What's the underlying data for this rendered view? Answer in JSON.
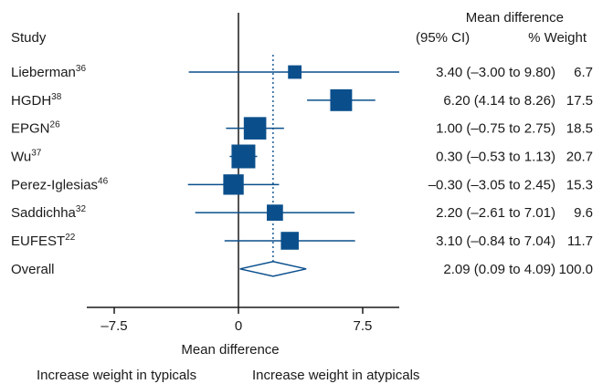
{
  "header": {
    "study": "Study",
    "effect_line1": "Mean difference",
    "effect_line2": "(95% CI)",
    "weight": "% Weight"
  },
  "chart_data": {
    "type": "forest",
    "xlabel": "Mean difference",
    "xlim": [
      -9,
      9
    ],
    "xticks": [
      -7.5,
      0,
      7.5
    ],
    "xtick_labels": [
      "–7.5",
      "0",
      "7.5"
    ],
    "null_value": 0,
    "left_note": "Increase weight in typicals",
    "right_note": "Increase weight in atypicals",
    "studies": [
      {
        "name": "Lieberman",
        "ref": "36",
        "mean": 3.4,
        "low": -3.0,
        "high": 9.8,
        "ci_text": "3.40 (–3.00 to 9.80)",
        "weight": 6.7,
        "weight_text": "6.7"
      },
      {
        "name": "HGDH",
        "ref": "38",
        "mean": 6.2,
        "low": 4.14,
        "high": 8.26,
        "ci_text": "6.20 (4.14 to 8.26)",
        "weight": 17.5,
        "weight_text": "17.5"
      },
      {
        "name": "EPGN",
        "ref": "26",
        "mean": 1.0,
        "low": -0.75,
        "high": 2.75,
        "ci_text": "1.00 (–0.75 to 2.75)",
        "weight": 18.5,
        "weight_text": "18.5"
      },
      {
        "name": "Wu",
        "ref": "37",
        "mean": 0.3,
        "low": -0.53,
        "high": 1.13,
        "ci_text": "0.30 (–0.53 to 1.13)",
        "weight": 20.7,
        "weight_text": "20.7"
      },
      {
        "name": "Perez-Iglesias",
        "ref": "46",
        "mean": -0.3,
        "low": -3.05,
        "high": 2.45,
        "ci_text": "–0.30 (–3.05 to 2.45)",
        "weight": 15.3,
        "weight_text": "15.3"
      },
      {
        "name": "Saddichha",
        "ref": "32",
        "mean": 2.2,
        "low": -2.61,
        "high": 7.01,
        "ci_text": "2.20 (–2.61 to 7.01)",
        "weight": 9.6,
        "weight_text": "9.6"
      },
      {
        "name": "EUFEST",
        "ref": "22",
        "mean": 3.1,
        "low": -0.84,
        "high": 7.04,
        "ci_text": "3.10 (–0.84 to 7.04)",
        "weight": 11.7,
        "weight_text": "11.7"
      }
    ],
    "overall": {
      "name": "Overall",
      "mean": 2.09,
      "low": 0.09,
      "high": 4.09,
      "ci_text": "2.09 (0.09 to 4.09)",
      "weight_text": "100.0"
    },
    "colors": {
      "marker": "#0a4f8c",
      "text": "#1a1a1a"
    }
  }
}
